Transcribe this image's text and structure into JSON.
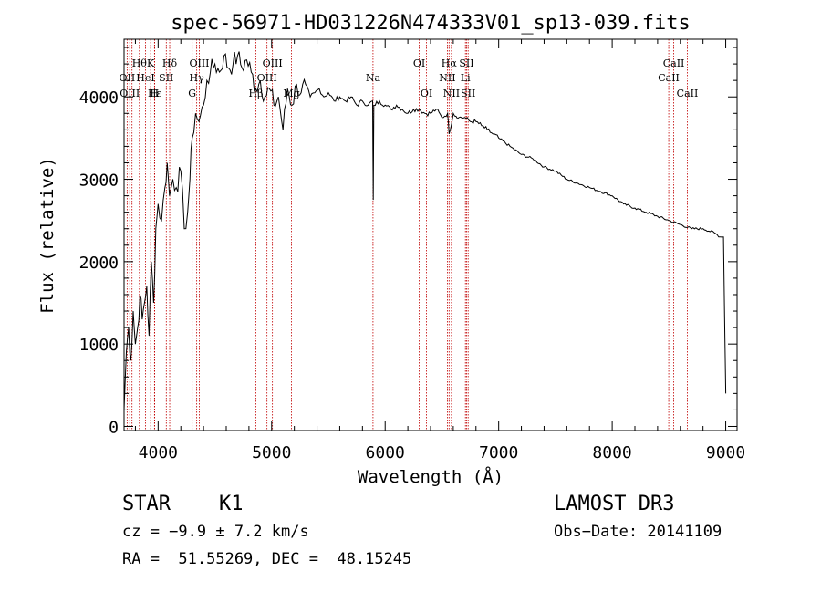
{
  "chart_data": {
    "type": "line",
    "title": "spec-56971-HD031226N474333V01_sp13-039.fits",
    "xlabel": "Wavelength (Å)",
    "ylabel": "Flux (relative)",
    "xlim": [
      3700,
      9100
    ],
    "ylim": [
      -50,
      4700
    ],
    "xticks": [
      "4000",
      "5000",
      "6000",
      "7000",
      "8000",
      "9000"
    ],
    "xtick_values": [
      4000,
      5000,
      6000,
      7000,
      8000,
      9000
    ],
    "yticks": [
      "0",
      "1000",
      "2000",
      "3000",
      "4000"
    ],
    "ytick_values": [
      0,
      1000,
      2000,
      3000,
      4000
    ],
    "grid": false,
    "line_color": "#000000",
    "marker_color": "#c00000",
    "series": [
      {
        "x": [
          3700,
          3720,
          3740,
          3760,
          3780,
          3800,
          3820,
          3840,
          3860,
          3880,
          3900,
          3920,
          3940,
          3960,
          3980,
          4000,
          4030,
          4060,
          4080,
          4100,
          4130,
          4160,
          4200,
          4230,
          4260,
          4280,
          4300,
          4330,
          4360,
          4400,
          4430,
          4460,
          4500,
          4540,
          4580,
          4620,
          4660,
          4700,
          4740,
          4780,
          4820,
          4860,
          4900,
          4940,
          4980,
          5020,
          5060,
          5100,
          5140,
          5180,
          5220,
          5260,
          5300,
          5340,
          5380,
          5420,
          5460,
          5500,
          5550,
          5600,
          5650,
          5700,
          5750,
          5800,
          5850,
          5890,
          5895,
          5900,
          5950,
          6000,
          6050,
          6100,
          6150,
          6200,
          6250,
          6300,
          6350,
          6400,
          6450,
          6500,
          6550,
          6563,
          6600,
          6650,
          6700,
          6750,
          6800,
          6850,
          6900,
          6950,
          7000,
          7100,
          7200,
          7300,
          7400,
          7500,
          7600,
          7700,
          7800,
          7900,
          8000,
          8100,
          8200,
          8300,
          8400,
          8500,
          8600,
          8700,
          8800,
          8900,
          8950,
          8980,
          9000
        ],
        "y": [
          200,
          900,
          1200,
          800,
          1400,
          1000,
          1200,
          1600,
          1300,
          1500,
          1700,
          1100,
          2000,
          1500,
          2400,
          2700,
          2500,
          2900,
          3200,
          2800,
          3000,
          2900,
          3100,
          2400,
          2600,
          3000,
          3500,
          3800,
          3700,
          3900,
          4200,
          4300,
          4400,
          4300,
          4500,
          4350,
          4400,
          4500,
          4350,
          4450,
          4300,
          4100,
          4200,
          4000,
          4100,
          3900,
          4000,
          3600,
          4100,
          3900,
          4150,
          4050,
          4150,
          4000,
          4050,
          4100,
          4000,
          4050,
          3950,
          4000,
          3950,
          4000,
          3900,
          3950,
          3900,
          3950,
          2750,
          3900,
          3950,
          3900,
          3850,
          3900,
          3850,
          3800,
          3850,
          3850,
          3800,
          3800,
          3850,
          3750,
          3800,
          3550,
          3800,
          3750,
          3750,
          3700,
          3700,
          3650,
          3600,
          3550,
          3500,
          3400,
          3300,
          3250,
          3150,
          3100,
          3000,
          2950,
          2900,
          2850,
          2800,
          2700,
          2650,
          2600,
          2550,
          2500,
          2450,
          2400,
          2400,
          2350,
          2300,
          2300,
          400
        ]
      }
    ],
    "line_markers": [
      {
        "x": 3727,
        "label": "OII",
        "row": 2
      },
      {
        "x": 3750,
        "label": "OIII",
        "row": 3
      },
      {
        "x": 3770,
        "label": "",
        "row": 0
      },
      {
        "x": 3835,
        "label": "Hθ",
        "row": 1
      },
      {
        "x": 3889,
        "label": "HeI",
        "row": 2
      },
      {
        "x": 3934,
        "label": "K",
        "row": 1
      },
      {
        "x": 3968,
        "label": "H",
        "row": 3
      },
      {
        "x": 3970,
        "label": "Hε",
        "row": 3
      },
      {
        "x": 4072,
        "label": "SII",
        "row": 2
      },
      {
        "x": 4102,
        "label": "Hδ",
        "row": 1
      },
      {
        "x": 4300,
        "label": "G",
        "row": 3
      },
      {
        "x": 4340,
        "label": "Hγ",
        "row": 2
      },
      {
        "x": 4363,
        "label": "OIII",
        "row": 1
      },
      {
        "x": 4861,
        "label": "Hβ",
        "row": 3
      },
      {
        "x": 4959,
        "label": "OIII",
        "row": 2
      },
      {
        "x": 5007,
        "label": "OIII",
        "row": 1
      },
      {
        "x": 5175,
        "label": "Mg",
        "row": 3
      },
      {
        "x": 5893,
        "label": "Na",
        "row": 2
      },
      {
        "x": 6300,
        "label": "OI",
        "row": 1
      },
      {
        "x": 6364,
        "label": "OI",
        "row": 3
      },
      {
        "x": 6548,
        "label": "NII",
        "row": 2
      },
      {
        "x": 6563,
        "label": "Hα",
        "row": 1
      },
      {
        "x": 6584,
        "label": "NII",
        "row": 3
      },
      {
        "x": 6707,
        "label": "Li",
        "row": 2
      },
      {
        "x": 6717,
        "label": "SII",
        "row": 1
      },
      {
        "x": 6731,
        "label": "SII",
        "row": 3
      },
      {
        "x": 8498,
        "label": "CaII",
        "row": 2
      },
      {
        "x": 8542,
        "label": "CaII",
        "row": 1
      },
      {
        "x": 8662,
        "label": "CaII",
        "row": 3
      }
    ]
  },
  "info": {
    "object_class": "STAR",
    "subclass": "K1",
    "survey": "LAMOST DR3",
    "cz": "cz = −9.9 ± 7.2 km/s",
    "obs_date": "Obs−Date: 20141109",
    "coords": "RA =  51.55269, DEC =  48.15245"
  }
}
